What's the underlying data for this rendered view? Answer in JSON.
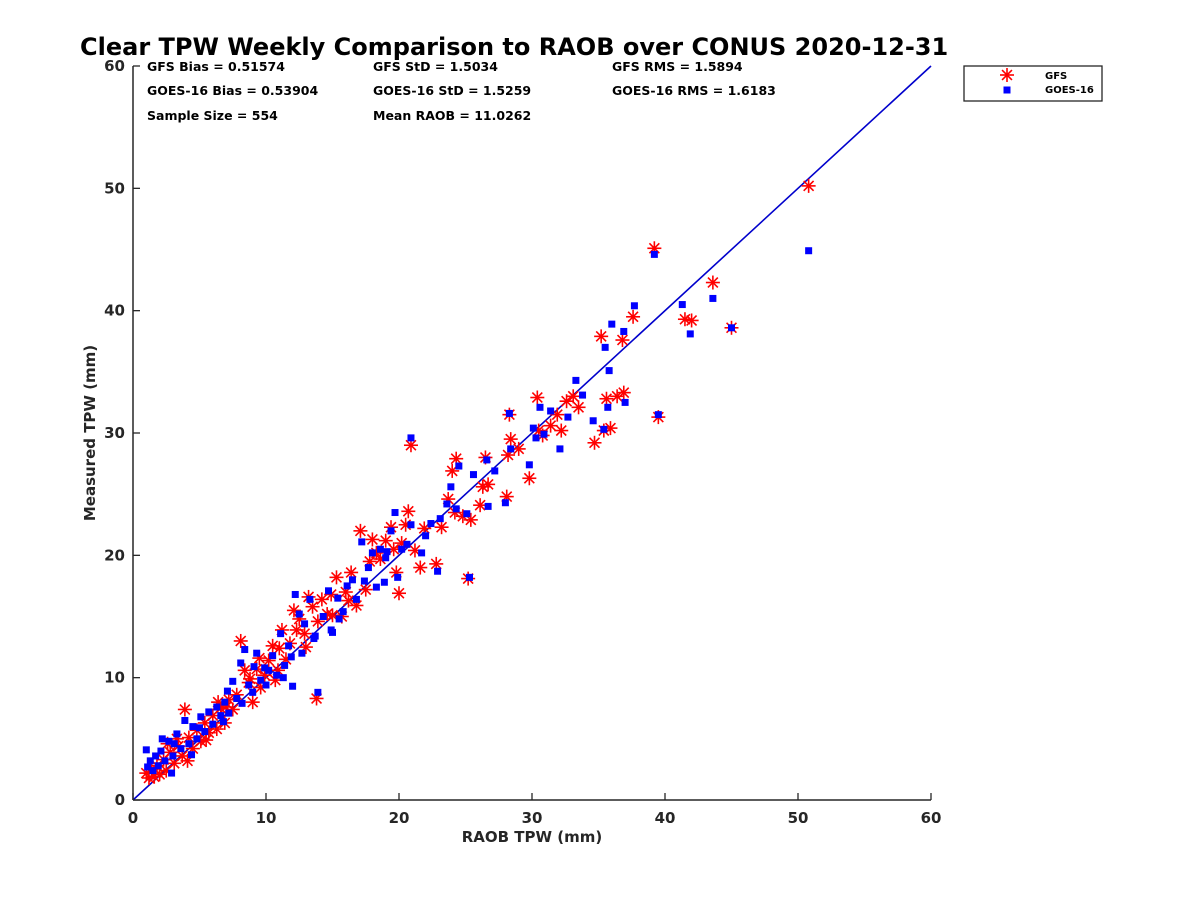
{
  "chart_data": {
    "type": "scatter",
    "title": "Clear TPW Weekly Comparison to RAOB over CONUS 2020-12-31",
    "xlabel": "RAOB TPW (mm)",
    "ylabel": "Measured TPW (mm)",
    "xlim": [
      0,
      60
    ],
    "ylim": [
      0,
      60
    ],
    "xticks": [
      "0",
      "10",
      "20",
      "30",
      "40",
      "50",
      "60"
    ],
    "yticks": [
      "0",
      "10",
      "20",
      "30",
      "40",
      "50",
      "60"
    ],
    "grid": false,
    "legend_position": "top-right-outside",
    "stats": [
      "GFS Bias = 0.51574",
      "GFS StD = 1.5034",
      "GFS RMS = 1.5894",
      "GOES-16 Bias = 0.53904",
      "GOES-16 StD = 1.5259",
      "GOES-16 RMS = 1.6183",
      "Sample Size = 554",
      "Mean RAOB = 11.0262"
    ],
    "reference_line": {
      "from": [
        0,
        0
      ],
      "to": [
        60,
        60
      ],
      "color": "#0000cc"
    },
    "series": [
      {
        "name": "GFS",
        "marker": "asterisk",
        "color": "#ff0000",
        "points": [
          [
            50.8,
            50.2
          ],
          [
            39.2,
            45.1
          ],
          [
            43.6,
            42.3
          ],
          [
            41.5,
            39.3
          ],
          [
            42.0,
            39.2
          ],
          [
            45.0,
            38.6
          ],
          [
            37.6,
            39.5
          ],
          [
            36.8,
            37.6
          ],
          [
            35.2,
            37.9
          ],
          [
            39.5,
            31.3
          ],
          [
            36.9,
            33.3
          ],
          [
            36.4,
            33.0
          ],
          [
            35.6,
            32.8
          ],
          [
            35.9,
            30.4
          ],
          [
            35.4,
            30.2
          ],
          [
            34.7,
            29.2
          ],
          [
            33.1,
            33.0
          ],
          [
            32.6,
            32.6
          ],
          [
            32.2,
            30.2
          ],
          [
            31.4,
            30.6
          ],
          [
            30.8,
            29.8
          ],
          [
            30.4,
            32.9
          ],
          [
            30.5,
            30.2
          ],
          [
            29.8,
            26.3
          ],
          [
            28.4,
            29.5
          ],
          [
            28.3,
            31.5
          ],
          [
            28.1,
            24.8
          ],
          [
            28.2,
            28.2
          ],
          [
            26.5,
            28.0
          ],
          [
            26.7,
            25.8
          ],
          [
            26.3,
            25.6
          ],
          [
            25.4,
            22.9
          ],
          [
            25.2,
            18.1
          ],
          [
            24.3,
            27.9
          ],
          [
            24.0,
            26.9
          ],
          [
            23.7,
            24.6
          ],
          [
            24.2,
            23.5
          ],
          [
            22.8,
            19.3
          ],
          [
            21.9,
            22.2
          ],
          [
            21.6,
            19.0
          ],
          [
            20.9,
            29.0
          ],
          [
            20.7,
            23.6
          ],
          [
            20.5,
            22.5
          ],
          [
            20.2,
            21.0
          ],
          [
            20.0,
            16.9
          ],
          [
            19.6,
            20.5
          ],
          [
            19.4,
            22.3
          ],
          [
            19.0,
            21.2
          ],
          [
            18.6,
            19.7
          ],
          [
            18.3,
            20.2
          ],
          [
            18.0,
            21.3
          ],
          [
            17.8,
            19.5
          ],
          [
            17.5,
            17.2
          ],
          [
            17.1,
            22.0
          ],
          [
            16.8,
            15.9
          ],
          [
            16.4,
            18.6
          ],
          [
            16.0,
            17.0
          ],
          [
            15.7,
            15.0
          ],
          [
            15.3,
            18.2
          ],
          [
            14.9,
            16.8
          ],
          [
            14.6,
            15.2
          ],
          [
            14.2,
            16.4
          ],
          [
            13.9,
            14.6
          ],
          [
            13.8,
            8.3
          ],
          [
            13.5,
            15.8
          ],
          [
            13.2,
            16.6
          ],
          [
            12.9,
            13.6
          ],
          [
            12.5,
            14.8
          ],
          [
            12.1,
            15.5
          ],
          [
            11.8,
            12.8
          ],
          [
            11.5,
            11.5
          ],
          [
            11.2,
            13.9
          ],
          [
            10.9,
            10.6
          ],
          [
            10.5,
            12.6
          ],
          [
            10.2,
            11.4
          ],
          [
            9.9,
            10.2
          ],
          [
            9.6,
            9.2
          ],
          [
            9.3,
            10.7
          ],
          [
            9.0,
            8.0
          ],
          [
            8.7,
            9.6
          ],
          [
            8.4,
            10.6
          ],
          [
            8.1,
            13.0
          ],
          [
            7.8,
            8.6
          ],
          [
            7.5,
            7.4
          ],
          [
            7.2,
            8.2
          ],
          [
            6.9,
            6.3
          ],
          [
            6.6,
            7.5
          ],
          [
            6.3,
            5.8
          ],
          [
            6.0,
            6.9
          ],
          [
            5.7,
            5.5
          ],
          [
            5.4,
            6.3
          ],
          [
            5.1,
            4.8
          ],
          [
            4.8,
            5.7
          ],
          [
            4.5,
            4.2
          ],
          [
            4.2,
            5.1
          ],
          [
            3.9,
            7.4
          ],
          [
            3.7,
            3.6
          ],
          [
            3.4,
            4.4
          ],
          [
            3.1,
            3.0
          ],
          [
            2.8,
            3.9
          ],
          [
            2.5,
            2.4
          ],
          [
            2.3,
            3.3
          ],
          [
            2.0,
            2.1
          ],
          [
            1.8,
            2.8
          ],
          [
            1.6,
            1.9
          ],
          [
            1.4,
            2.5
          ],
          [
            1.2,
            1.8
          ],
          [
            1.0,
            2.2
          ],
          [
            2.6,
            4.6
          ],
          [
            3.3,
            5.0
          ],
          [
            5.5,
            4.9
          ],
          [
            7.0,
            7.6
          ],
          [
            8.8,
            9.9
          ],
          [
            10.7,
            9.8
          ],
          [
            12.3,
            13.9
          ],
          [
            13.0,
            12.5
          ],
          [
            15.0,
            15.1
          ],
          [
            16.2,
            16.3
          ],
          [
            19.8,
            18.6
          ],
          [
            21.2,
            20.4
          ],
          [
            23.2,
            22.3
          ],
          [
            24.8,
            23.2
          ],
          [
            26.1,
            24.1
          ],
          [
            29.0,
            28.7
          ],
          [
            31.9,
            31.5
          ],
          [
            33.5,
            32.1
          ],
          [
            9.5,
            11.6
          ],
          [
            11.0,
            12.4
          ],
          [
            4.1,
            3.2
          ],
          [
            6.4,
            8.0
          ]
        ]
      },
      {
        "name": "GOES-16",
        "marker": "square",
        "color": "#0000ff",
        "points": [
          [
            50.8,
            44.9
          ],
          [
            39.2,
            44.6
          ],
          [
            43.6,
            41.0
          ],
          [
            41.3,
            40.5
          ],
          [
            41.9,
            38.1
          ],
          [
            45.0,
            38.6
          ],
          [
            37.7,
            40.4
          ],
          [
            36.9,
            38.3
          ],
          [
            35.5,
            37.0
          ],
          [
            39.5,
            31.5
          ],
          [
            37.0,
            32.5
          ],
          [
            36.0,
            38.9
          ],
          [
            35.8,
            35.1
          ],
          [
            35.7,
            32.1
          ],
          [
            35.4,
            30.3
          ],
          [
            34.6,
            31.0
          ],
          [
            33.3,
            34.3
          ],
          [
            32.7,
            31.3
          ],
          [
            32.1,
            28.7
          ],
          [
            31.4,
            31.8
          ],
          [
            30.9,
            29.9
          ],
          [
            30.6,
            32.1
          ],
          [
            30.3,
            29.6
          ],
          [
            29.8,
            27.4
          ],
          [
            28.4,
            28.7
          ],
          [
            28.3,
            31.6
          ],
          [
            28.0,
            24.3
          ],
          [
            26.6,
            27.8
          ],
          [
            26.7,
            24.0
          ],
          [
            25.6,
            26.6
          ],
          [
            25.1,
            23.4
          ],
          [
            25.3,
            18.2
          ],
          [
            24.5,
            27.3
          ],
          [
            23.9,
            25.6
          ],
          [
            23.6,
            24.2
          ],
          [
            22.9,
            18.7
          ],
          [
            23.1,
            23.0
          ],
          [
            22.0,
            21.6
          ],
          [
            21.7,
            20.2
          ],
          [
            20.9,
            29.6
          ],
          [
            20.9,
            22.5
          ],
          [
            20.6,
            20.9
          ],
          [
            20.2,
            20.5
          ],
          [
            19.9,
            18.2
          ],
          [
            19.7,
            23.5
          ],
          [
            19.4,
            22.0
          ],
          [
            19.0,
            19.8
          ],
          [
            18.6,
            20.5
          ],
          [
            18.3,
            17.4
          ],
          [
            18.0,
            20.2
          ],
          [
            17.7,
            19.0
          ],
          [
            17.2,
            21.1
          ],
          [
            16.8,
            16.4
          ],
          [
            16.5,
            18.0
          ],
          [
            16.1,
            17.5
          ],
          [
            15.8,
            15.4
          ],
          [
            15.4,
            16.5
          ],
          [
            15.0,
            13.7
          ],
          [
            14.7,
            17.1
          ],
          [
            14.3,
            15.0
          ],
          [
            13.9,
            8.8
          ],
          [
            13.6,
            13.2
          ],
          [
            13.3,
            16.4
          ],
          [
            12.9,
            14.4
          ],
          [
            12.5,
            15.2
          ],
          [
            12.2,
            16.8
          ],
          [
            12.0,
            9.3
          ],
          [
            11.7,
            12.6
          ],
          [
            11.4,
            11.0
          ],
          [
            11.1,
            13.6
          ],
          [
            10.8,
            10.2
          ],
          [
            10.5,
            11.8
          ],
          [
            10.2,
            10.6
          ],
          [
            9.9,
            10.8
          ],
          [
            9.6,
            9.8
          ],
          [
            9.3,
            12.0
          ],
          [
            9.0,
            8.8
          ],
          [
            8.7,
            9.4
          ],
          [
            8.4,
            12.3
          ],
          [
            8.1,
            11.2
          ],
          [
            7.8,
            8.3
          ],
          [
            7.5,
            9.7
          ],
          [
            7.2,
            7.1
          ],
          [
            6.9,
            8.0
          ],
          [
            6.6,
            6.9
          ],
          [
            6.3,
            7.6
          ],
          [
            6.0,
            6.2
          ],
          [
            5.7,
            7.2
          ],
          [
            5.4,
            5.6
          ],
          [
            5.1,
            6.8
          ],
          [
            4.8,
            5.0
          ],
          [
            4.5,
            6.0
          ],
          [
            4.2,
            4.6
          ],
          [
            3.9,
            6.5
          ],
          [
            3.6,
            4.2
          ],
          [
            3.3,
            5.4
          ],
          [
            3.0,
            3.6
          ],
          [
            2.7,
            4.8
          ],
          [
            2.4,
            3.2
          ],
          [
            2.1,
            4.0
          ],
          [
            1.9,
            2.8
          ],
          [
            1.7,
            3.6
          ],
          [
            1.5,
            2.4
          ],
          [
            1.3,
            3.2
          ],
          [
            1.1,
            2.7
          ],
          [
            1.0,
            4.1
          ],
          [
            2.2,
            5.0
          ],
          [
            3.1,
            4.6
          ],
          [
            5.0,
            5.9
          ],
          [
            6.8,
            6.4
          ],
          [
            8.2,
            7.9
          ],
          [
            10.0,
            9.4
          ],
          [
            11.9,
            11.7
          ],
          [
            13.7,
            13.4
          ],
          [
            15.5,
            14.8
          ],
          [
            17.4,
            17.9
          ],
          [
            19.1,
            20.3
          ],
          [
            22.4,
            22.6
          ],
          [
            24.3,
            23.8
          ],
          [
            27.2,
            26.9
          ],
          [
            30.1,
            30.4
          ],
          [
            33.8,
            33.1
          ],
          [
            7.1,
            8.9
          ],
          [
            9.1,
            10.9
          ],
          [
            4.4,
            3.7
          ],
          [
            2.9,
            2.2
          ],
          [
            11.3,
            10.0
          ],
          [
            12.7,
            12.0
          ],
          [
            14.9,
            13.9
          ],
          [
            18.9,
            17.8
          ]
        ]
      }
    ]
  }
}
